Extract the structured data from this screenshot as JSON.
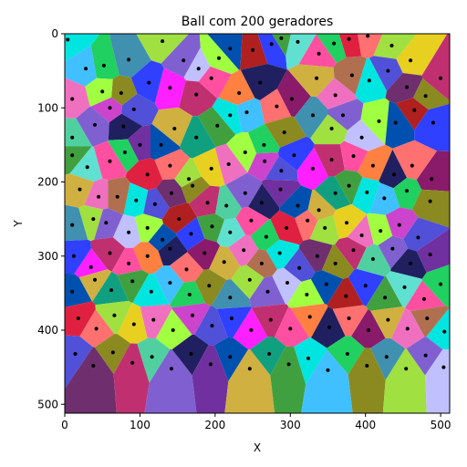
{
  "chart_data": {
    "type": "scatter",
    "title": "Ball com 200 geradores",
    "xlabel": "X",
    "ylabel": "Y",
    "xlim": [
      0,
      512
    ],
    "ylim": [
      512,
      0
    ],
    "y_inverted": true,
    "grid": false,
    "legend": "none",
    "xticks": [
      "0",
      "100",
      "200",
      "300",
      "400",
      "500"
    ],
    "yticks": [
      "0",
      "100",
      "200",
      "300",
      "400",
      "500"
    ],
    "background": "voronoi-cells",
    "generator_count": 200,
    "point_color": "#000000",
    "palette": [
      "#00e5e0",
      "#cc44cc",
      "#0050b0",
      "#8a1a6a",
      "#a0e040",
      "#50d0a0",
      "#ff4fa0",
      "#40c0ff",
      "#5050d8",
      "#b02020",
      "#d0b040",
      "#e8d020",
      "#8060d0",
      "#ff8040",
      "#20d060",
      "#6f2f6f",
      "#3040ff",
      "#10a080",
      "#f070c0",
      "#c0c0ff",
      "#202060",
      "#e02040",
      "#8a8a20",
      "#ff20ff",
      "#40a040",
      "#b07050",
      "#a0ff40",
      "#7030a0",
      "#ff7070",
      "#4090b0",
      "#c03070",
      "#60e0d0"
    ],
    "points": [
      {
        "x": 4,
        "y": 8
      },
      {
        "x": 28,
        "y": 47
      },
      {
        "x": 52,
        "y": 43
      },
      {
        "x": 75,
        "y": 80
      },
      {
        "x": 85,
        "y": 35
      },
      {
        "x": 130,
        "y": 10
      },
      {
        "x": 158,
        "y": 36
      },
      {
        "x": 178,
        "y": 47
      },
      {
        "x": 205,
        "y": 33
      },
      {
        "x": 220,
        "y": 20
      },
      {
        "x": 250,
        "y": 22
      },
      {
        "x": 275,
        "y": 14
      },
      {
        "x": 288,
        "y": 6
      },
      {
        "x": 310,
        "y": 11
      },
      {
        "x": 338,
        "y": 27
      },
      {
        "x": 358,
        "y": 13
      },
      {
        "x": 378,
        "y": 7
      },
      {
        "x": 403,
        "y": 3
      },
      {
        "x": 435,
        "y": 16
      },
      {
        "x": 460,
        "y": 36
      },
      {
        "x": 10,
        "y": 88
      },
      {
        "x": 50,
        "y": 78
      },
      {
        "x": 60,
        "y": 100
      },
      {
        "x": 92,
        "y": 102
      },
      {
        "x": 112,
        "y": 66
      },
      {
        "x": 140,
        "y": 73
      },
      {
        "x": 175,
        "y": 82
      },
      {
        "x": 195,
        "y": 60
      },
      {
        "x": 232,
        "y": 80
      },
      {
        "x": 260,
        "y": 66
      },
      {
        "x": 282,
        "y": 98
      },
      {
        "x": 302,
        "y": 88
      },
      {
        "x": 335,
        "y": 60
      },
      {
        "x": 360,
        "y": 83
      },
      {
        "x": 382,
        "y": 56
      },
      {
        "x": 405,
        "y": 63
      },
      {
        "x": 430,
        "y": 50
      },
      {
        "x": 455,
        "y": 72
      },
      {
        "x": 480,
        "y": 84
      },
      {
        "x": 500,
        "y": 60
      },
      {
        "x": 10,
        "y": 140
      },
      {
        "x": 40,
        "y": 123
      },
      {
        "x": 78,
        "y": 125
      },
      {
        "x": 100,
        "y": 150
      },
      {
        "x": 128,
        "y": 150
      },
      {
        "x": 146,
        "y": 128
      },
      {
        "x": 175,
        "y": 140
      },
      {
        "x": 203,
        "y": 124
      },
      {
        "x": 220,
        "y": 110
      },
      {
        "x": 242,
        "y": 106
      },
      {
        "x": 265,
        "y": 150
      },
      {
        "x": 292,
        "y": 133
      },
      {
        "x": 330,
        "y": 110
      },
      {
        "x": 355,
        "y": 128
      },
      {
        "x": 370,
        "y": 110
      },
      {
        "x": 395,
        "y": 140
      },
      {
        "x": 418,
        "y": 118
      },
      {
        "x": 440,
        "y": 120
      },
      {
        "x": 465,
        "y": 103
      },
      {
        "x": 490,
        "y": 120
      },
      {
        "x": 10,
        "y": 164
      },
      {
        "x": 30,
        "y": 180
      },
      {
        "x": 60,
        "y": 172
      },
      {
        "x": 80,
        "y": 160
      },
      {
        "x": 110,
        "y": 190
      },
      {
        "x": 140,
        "y": 178
      },
      {
        "x": 165,
        "y": 196
      },
      {
        "x": 195,
        "y": 182
      },
      {
        "x": 218,
        "y": 176
      },
      {
        "x": 240,
        "y": 160
      },
      {
        "x": 266,
        "y": 172
      },
      {
        "x": 288,
        "y": 185
      },
      {
        "x": 305,
        "y": 164
      },
      {
        "x": 330,
        "y": 182
      },
      {
        "x": 355,
        "y": 170
      },
      {
        "x": 384,
        "y": 165
      },
      {
        "x": 410,
        "y": 178
      },
      {
        "x": 438,
        "y": 190
      },
      {
        "x": 462,
        "y": 178
      },
      {
        "x": 488,
        "y": 196
      },
      {
        "x": 20,
        "y": 210
      },
      {
        "x": 45,
        "y": 220
      },
      {
        "x": 70,
        "y": 220
      },
      {
        "x": 95,
        "y": 225
      },
      {
        "x": 120,
        "y": 230
      },
      {
        "x": 142,
        "y": 215
      },
      {
        "x": 170,
        "y": 205
      },
      {
        "x": 190,
        "y": 228
      },
      {
        "x": 215,
        "y": 232
      },
      {
        "x": 240,
        "y": 215
      },
      {
        "x": 262,
        "y": 228
      },
      {
        "x": 287,
        "y": 210
      },
      {
        "x": 310,
        "y": 232
      },
      {
        "x": 338,
        "y": 238
      },
      {
        "x": 360,
        "y": 215
      },
      {
        "x": 378,
        "y": 205
      },
      {
        "x": 402,
        "y": 214
      },
      {
        "x": 425,
        "y": 222
      },
      {
        "x": 455,
        "y": 212
      },
      {
        "x": 486,
        "y": 226
      },
      {
        "x": 10,
        "y": 258
      },
      {
        "x": 38,
        "y": 250
      },
      {
        "x": 55,
        "y": 255
      },
      {
        "x": 85,
        "y": 268
      },
      {
        "x": 110,
        "y": 262
      },
      {
        "x": 130,
        "y": 278
      },
      {
        "x": 152,
        "y": 250
      },
      {
        "x": 168,
        "y": 270
      },
      {
        "x": 196,
        "y": 260
      },
      {
        "x": 220,
        "y": 268
      },
      {
        "x": 248,
        "y": 252
      },
      {
        "x": 268,
        "y": 274
      },
      {
        "x": 295,
        "y": 262
      },
      {
        "x": 323,
        "y": 252
      },
      {
        "x": 346,
        "y": 262
      },
      {
        "x": 375,
        "y": 255
      },
      {
        "x": 395,
        "y": 272
      },
      {
        "x": 420,
        "y": 266
      },
      {
        "x": 445,
        "y": 258
      },
      {
        "x": 470,
        "y": 275
      },
      {
        "x": 12,
        "y": 300
      },
      {
        "x": 35,
        "y": 315
      },
      {
        "x": 60,
        "y": 296
      },
      {
        "x": 85,
        "y": 310
      },
      {
        "x": 110,
        "y": 300
      },
      {
        "x": 140,
        "y": 290
      },
      {
        "x": 162,
        "y": 318
      },
      {
        "x": 186,
        "y": 296
      },
      {
        "x": 212,
        "y": 308
      },
      {
        "x": 238,
        "y": 292
      },
      {
        "x": 262,
        "y": 310
      },
      {
        "x": 286,
        "y": 296
      },
      {
        "x": 312,
        "y": 316
      },
      {
        "x": 336,
        "y": 300
      },
      {
        "x": 360,
        "y": 310
      },
      {
        "x": 384,
        "y": 292
      },
      {
        "x": 410,
        "y": 304
      },
      {
        "x": 436,
        "y": 290
      },
      {
        "x": 460,
        "y": 310
      },
      {
        "x": 486,
        "y": 298
      },
      {
        "x": 10,
        "y": 348
      },
      {
        "x": 40,
        "y": 332
      },
      {
        "x": 62,
        "y": 346
      },
      {
        "x": 90,
        "y": 334
      },
      {
        "x": 115,
        "y": 348
      },
      {
        "x": 140,
        "y": 336
      },
      {
        "x": 166,
        "y": 352
      },
      {
        "x": 192,
        "y": 340
      },
      {
        "x": 220,
        "y": 356
      },
      {
        "x": 246,
        "y": 332
      },
      {
        "x": 270,
        "y": 348
      },
      {
        "x": 296,
        "y": 336
      },
      {
        "x": 322,
        "y": 352
      },
      {
        "x": 348,
        "y": 338
      },
      {
        "x": 374,
        "y": 354
      },
      {
        "x": 400,
        "y": 340
      },
      {
        "x": 426,
        "y": 356
      },
      {
        "x": 452,
        "y": 342
      },
      {
        "x": 478,
        "y": 358
      },
      {
        "x": 500,
        "y": 338
      },
      {
        "x": 18,
        "y": 384
      },
      {
        "x": 42,
        "y": 398
      },
      {
        "x": 66,
        "y": 380
      },
      {
        "x": 92,
        "y": 392
      },
      {
        "x": 118,
        "y": 386
      },
      {
        "x": 144,
        "y": 400
      },
      {
        "x": 170,
        "y": 380
      },
      {
        "x": 196,
        "y": 394
      },
      {
        "x": 222,
        "y": 384
      },
      {
        "x": 248,
        "y": 400
      },
      {
        "x": 274,
        "y": 386
      },
      {
        "x": 300,
        "y": 398
      },
      {
        "x": 326,
        "y": 382
      },
      {
        "x": 352,
        "y": 396
      },
      {
        "x": 378,
        "y": 384
      },
      {
        "x": 404,
        "y": 400
      },
      {
        "x": 430,
        "y": 386
      },
      {
        "x": 456,
        "y": 398
      },
      {
        "x": 482,
        "y": 384
      },
      {
        "x": 505,
        "y": 402
      },
      {
        "x": 14,
        "y": 432
      },
      {
        "x": 38,
        "y": 448
      },
      {
        "x": 64,
        "y": 430
      },
      {
        "x": 90,
        "y": 444
      },
      {
        "x": 116,
        "y": 436
      },
      {
        "x": 142,
        "y": 452
      },
      {
        "x": 168,
        "y": 432
      },
      {
        "x": 194,
        "y": 446
      },
      {
        "x": 220,
        "y": 436
      },
      {
        "x": 246,
        "y": 452
      },
      {
        "x": 272,
        "y": 432
      },
      {
        "x": 298,
        "y": 446
      },
      {
        "x": 324,
        "y": 438
      },
      {
        "x": 350,
        "y": 454
      },
      {
        "x": 376,
        "y": 432
      },
      {
        "x": 402,
        "y": 448
      },
      {
        "x": 428,
        "y": 436
      },
      {
        "x": 454,
        "y": 452
      },
      {
        "x": 480,
        "y": 434
      },
      {
        "x": 504,
        "y": 450
      }
    ]
  }
}
